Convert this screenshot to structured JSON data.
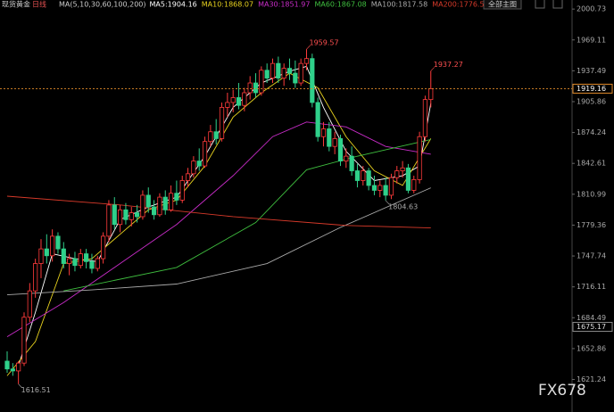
{
  "chart_data": {
    "type": "candlestick",
    "title": "现货黄金",
    "period": "日线",
    "ma_header": "MA(5,10,30,60,100,200)",
    "button": "全部主图",
    "watermark": "FX678",
    "up_color": "#ff3b3b",
    "down_color": "#2fd08a",
    "ylim": [
      1608,
      2010
    ],
    "yticks": [
      2000.73,
      1969.11,
      1937.49,
      1905.86,
      1874.24,
      1842.61,
      1810.99,
      1779.36,
      1747.74,
      1716.11,
      1684.49,
      1652.86,
      1621.24
    ],
    "right_marker": 1675.17,
    "candles": [
      [
        1640,
        1650,
        1628,
        1632
      ],
      [
        1632,
        1638,
        1625,
        1630
      ],
      [
        1630,
        1640,
        1616.51,
        1638
      ],
      [
        1638,
        1690,
        1635,
        1685
      ],
      [
        1685,
        1720,
        1680,
        1712
      ],
      [
        1712,
        1745,
        1705,
        1740
      ],
      [
        1740,
        1765,
        1725,
        1755
      ],
      [
        1755,
        1770,
        1740,
        1748
      ],
      [
        1748,
        1775,
        1742,
        1768
      ],
      [
        1768,
        1772,
        1750,
        1755
      ],
      [
        1755,
        1762,
        1735,
        1740
      ],
      [
        1740,
        1750,
        1728,
        1745
      ],
      [
        1745,
        1752,
        1732,
        1738
      ],
      [
        1738,
        1755,
        1735,
        1750
      ],
      [
        1750,
        1755,
        1735,
        1742
      ],
      [
        1742,
        1750,
        1730,
        1735
      ],
      [
        1735,
        1748,
        1732,
        1745
      ],
      [
        1745,
        1772,
        1740,
        1768
      ],
      [
        1768,
        1805,
        1762,
        1800
      ],
      [
        1800,
        1808,
        1775,
        1780
      ],
      [
        1780,
        1800,
        1772,
        1795
      ],
      [
        1795,
        1802,
        1780,
        1785
      ],
      [
        1785,
        1798,
        1778,
        1792
      ],
      [
        1792,
        1800,
        1782,
        1788
      ],
      [
        1788,
        1815,
        1785,
        1810
      ],
      [
        1810,
        1818,
        1792,
        1798
      ],
      [
        1798,
        1805,
        1785,
        1790
      ],
      [
        1790,
        1812,
        1788,
        1808
      ],
      [
        1808,
        1815,
        1790,
        1795
      ],
      [
        1795,
        1820,
        1793,
        1812
      ],
      [
        1812,
        1825,
        1800,
        1805
      ],
      [
        1805,
        1830,
        1802,
        1825
      ],
      [
        1825,
        1838,
        1818,
        1832
      ],
      [
        1832,
        1850,
        1828,
        1845
      ],
      [
        1845,
        1858,
        1835,
        1840
      ],
      [
        1840,
        1870,
        1838,
        1865
      ],
      [
        1865,
        1882,
        1860,
        1875
      ],
      [
        1875,
        1888,
        1862,
        1868
      ],
      [
        1868,
        1905,
        1865,
        1900
      ],
      [
        1900,
        1915,
        1890,
        1905
      ],
      [
        1905,
        1918,
        1895,
        1910
      ],
      [
        1910,
        1925,
        1898,
        1902
      ],
      [
        1902,
        1920,
        1896,
        1915
      ],
      [
        1915,
        1932,
        1908,
        1925
      ],
      [
        1925,
        1935,
        1910,
        1915
      ],
      [
        1915,
        1942,
        1912,
        1938
      ],
      [
        1938,
        1945,
        1925,
        1930
      ],
      [
        1930,
        1950,
        1925,
        1945
      ],
      [
        1945,
        1952,
        1925,
        1930
      ],
      [
        1930,
        1945,
        1922,
        1940
      ],
      [
        1940,
        1950,
        1928,
        1935
      ],
      [
        1935,
        1948,
        1920,
        1925
      ],
      [
        1925,
        1950,
        1922,
        1945
      ],
      [
        1945,
        1959.57,
        1938,
        1950
      ],
      [
        1950,
        1955,
        1900,
        1905
      ],
      [
        1905,
        1910,
        1865,
        1870
      ],
      [
        1870,
        1885,
        1860,
        1878
      ],
      [
        1878,
        1885,
        1855,
        1860
      ],
      [
        1860,
        1875,
        1852,
        1868
      ],
      [
        1868,
        1872,
        1840,
        1845
      ],
      [
        1845,
        1858,
        1838,
        1850
      ],
      [
        1850,
        1860,
        1830,
        1835
      ],
      [
        1835,
        1842,
        1818,
        1825
      ],
      [
        1825,
        1840,
        1820,
        1835
      ],
      [
        1835,
        1838,
        1815,
        1820
      ],
      [
        1820,
        1830,
        1810,
        1815
      ],
      [
        1815,
        1825,
        1808,
        1820
      ],
      [
        1820,
        1828,
        1804.63,
        1810
      ],
      [
        1810,
        1832,
        1806,
        1828
      ],
      [
        1828,
        1840,
        1822,
        1835
      ],
      [
        1835,
        1845,
        1828,
        1838
      ],
      [
        1838,
        1842,
        1812,
        1815
      ],
      [
        1815,
        1830,
        1812,
        1826
      ],
      [
        1826,
        1875,
        1822,
        1870
      ],
      [
        1870,
        1912,
        1865,
        1908
      ],
      [
        1908,
        1937.27,
        1900,
        1919.16
      ]
    ],
    "ma": [
      {
        "label": "MA5:1904.16",
        "color": "#ffffff",
        "x": [
          2,
          5,
          8,
          12,
          16,
          20,
          25,
          30,
          35,
          40,
          45,
          50,
          53,
          56,
          60,
          65,
          70,
          73,
          75
        ],
        "values": [
          1635,
          1690,
          1750,
          1745,
          1742,
          1785,
          1798,
          1808,
          1850,
          1900,
          1925,
          1937,
          1942,
          1900,
          1855,
          1825,
          1830,
          1840,
          1904.16
        ]
      },
      {
        "label": "MA10:1868.07",
        "color": "#e8d21e",
        "x": [
          0,
          5,
          10,
          15,
          20,
          25,
          30,
          35,
          40,
          45,
          50,
          55,
          60,
          65,
          70,
          75
        ],
        "values": [
          1625,
          1660,
          1740,
          1745,
          1770,
          1795,
          1805,
          1840,
          1890,
          1915,
          1935,
          1920,
          1870,
          1835,
          1820,
          1868.07
        ]
      },
      {
        "label": "MA30:1851.97",
        "color": "#c82cc8",
        "x": [
          0,
          10,
          20,
          30,
          40,
          47,
          53,
          60,
          67,
          75
        ],
        "values": [
          1665,
          1700,
          1740,
          1780,
          1830,
          1870,
          1885,
          1880,
          1860,
          1851.97
        ]
      },
      {
        "label": "MA60:1867.08",
        "color": "#3fbf3f",
        "x": [
          10,
          30,
          44,
          53,
          62,
          75
        ],
        "values": [
          1712,
          1736,
          1782,
          1836,
          1850,
          1867.08
        ]
      },
      {
        "label": "MA100:1817.58",
        "color": "#aaaaaa",
        "x": [
          0,
          15,
          30,
          46,
          59,
          75
        ],
        "values": [
          1708,
          1713,
          1719,
          1740,
          1777,
          1817.58
        ]
      },
      {
        "label": "MA200:1776.5",
        "color": "#d83a2a",
        "x": [
          0,
          20,
          40,
          60,
          75
        ],
        "values": [
          1809,
          1800,
          1788,
          1779,
          1776.5
        ]
      }
    ]
  }
}
